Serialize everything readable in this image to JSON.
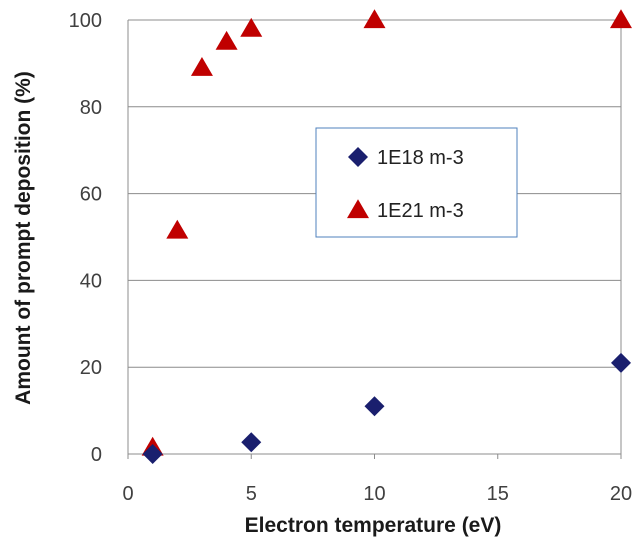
{
  "chart_data": {
    "type": "scatter",
    "title": "",
    "xlabel": "Electron temperature (eV)",
    "ylabel": "Amount of prompt deposition (%)",
    "xlim": [
      0,
      20
    ],
    "ylim": [
      0,
      100
    ],
    "xticks": [
      "0",
      "5",
      "10",
      "15",
      "20"
    ],
    "yticks": [
      "0",
      "20",
      "40",
      "60",
      "80",
      "100"
    ],
    "grid": "horizontal",
    "legend_position": "center",
    "series": [
      {
        "name": "1E18 m-3",
        "marker": "diamond",
        "color": "#1a1f6e",
        "points": [
          {
            "x": 1,
            "y": 0
          },
          {
            "x": 5,
            "y": 2.7
          },
          {
            "x": 10,
            "y": 11
          },
          {
            "x": 20,
            "y": 21
          }
        ]
      },
      {
        "name": "1E21 m-3",
        "marker": "triangle",
        "color": "#c00000",
        "points": [
          {
            "x": 1,
            "y": 1.5
          },
          {
            "x": 2,
            "y": 51.5
          },
          {
            "x": 3,
            "y": 89
          },
          {
            "x": 4,
            "y": 95
          },
          {
            "x": 5,
            "y": 98
          },
          {
            "x": 10,
            "y": 100
          },
          {
            "x": 20,
            "y": 100
          }
        ]
      }
    ]
  }
}
